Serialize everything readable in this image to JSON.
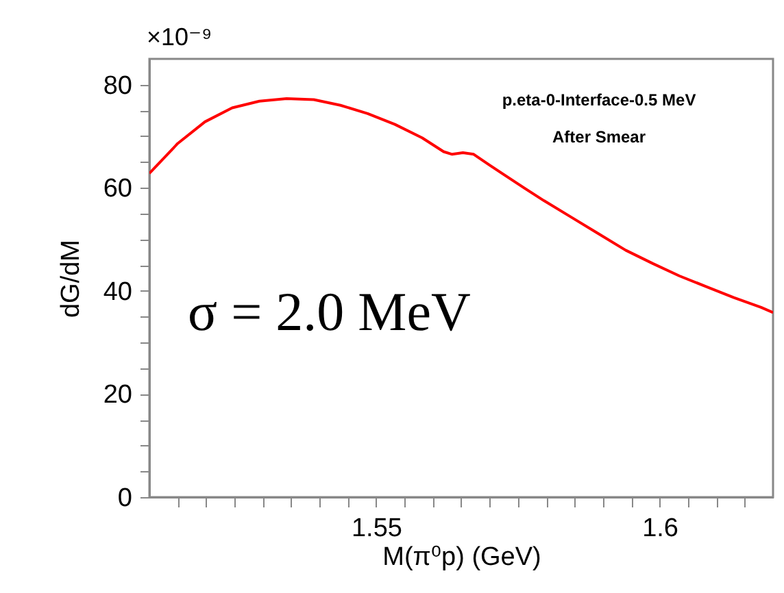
{
  "chart_data": {
    "type": "line",
    "xlabel": "M(π⁰p) (GeV)",
    "ylabel": "dG/dM",
    "annotations": [
      "×10⁻⁹",
      "p.eta-0-Interface-0.5 MeV",
      "After Smear",
      "σ = 2.0 MeV"
    ],
    "x": [
      1.51,
      1.515,
      1.5198,
      1.5246,
      1.5294,
      1.5342,
      1.539,
      1.5437,
      1.5485,
      1.5533,
      1.5581,
      1.5619,
      1.5634,
      1.5653,
      1.5672,
      1.57,
      1.5748,
      1.5796,
      1.5844,
      1.5892,
      1.594,
      1.5988,
      1.6035,
      1.6083,
      1.6131,
      1.6179,
      1.62
    ],
    "series": [
      {
        "color": "#ff0000",
        "values": [
          62.8,
          68.6,
          72.8,
          75.5,
          76.8,
          77.3,
          77.1,
          76.0,
          74.4,
          72.3,
          69.7,
          67.0,
          66.5,
          66.8,
          66.5,
          64.4,
          60.9,
          57.5,
          54.3,
          51.1,
          47.9,
          45.3,
          42.9,
          40.8,
          38.7,
          36.8,
          35.8
        ]
      }
    ],
    "xlim": [
      1.51,
      1.62
    ],
    "xticks": [
      {
        "value": 1.515,
        "label": null
      },
      {
        "value": 1.52,
        "label": null
      },
      {
        "value": 1.525,
        "label": null
      },
      {
        "value": 1.53,
        "label": null
      },
      {
        "value": 1.535,
        "label": null
      },
      {
        "value": 1.54,
        "label": null
      },
      {
        "value": 1.545,
        "label": null
      },
      1.55,
      {
        "value": 1.555,
        "label": null
      },
      {
        "value": 1.56,
        "label": null
      },
      {
        "value": 1.565,
        "label": null
      },
      {
        "value": 1.57,
        "label": null
      },
      {
        "value": 1.575,
        "label": null
      },
      {
        "value": 1.58,
        "label": null
      },
      {
        "value": 1.585,
        "label": null
      },
      {
        "value": 1.59,
        "label": null
      },
      {
        "value": 1.595,
        "label": null
      },
      1.6,
      {
        "value": 1.605,
        "label": null
      },
      {
        "value": 1.61,
        "label": null
      },
      {
        "value": 1.615,
        "label": null
      }
    ],
    "ylim": [
      0,
      85
    ],
    "yticks": [
      0,
      {
        "value": 5,
        "label": null
      },
      {
        "value": 10,
        "label": null
      },
      {
        "value": 15,
        "label": null
      },
      20,
      {
        "value": 25,
        "label": null
      },
      {
        "value": 30,
        "label": null
      },
      {
        "value": 35,
        "label": null
      },
      40,
      {
        "value": 45,
        "label": null
      },
      {
        "value": 50,
        "label": null
      },
      {
        "value": 55,
        "label": null
      },
      60,
      {
        "value": 65,
        "label": null
      },
      {
        "value": 70,
        "label": null
      },
      {
        "value": 75,
        "label": null
      },
      80
    ],
    "grid": false,
    "marker": "none",
    "line_style": "solid"
  }
}
